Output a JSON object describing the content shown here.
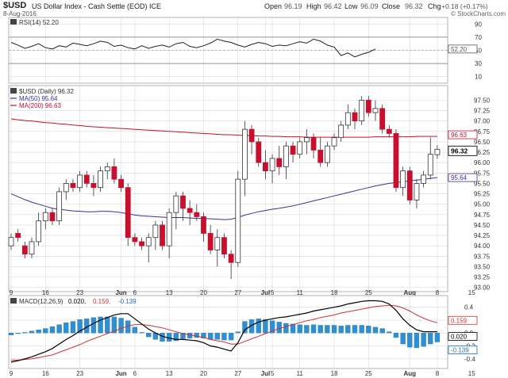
{
  "header": {
    "symbol": "$USD",
    "name": "US Dollar Index - Cash Settle (EOD) ICE",
    "date": "8-Aug-2016",
    "quote_parts": [
      "Open",
      "96.19",
      "High",
      "96.42",
      "Low",
      "96.09",
      "Close",
      "96.32",
      "Chg",
      "+0.18 (+0.17%)"
    ],
    "copyright": "© StockCharts.com"
  },
  "colors": {
    "up": "#ffffff",
    "down": "#c8102e",
    "ma50": "#33339a",
    "ma200": "#c8102e",
    "macd_line": "#000000",
    "macd_signal": "#d03030",
    "hist": "#2f8fd0",
    "grid": "#d8d8d8",
    "panel_border": "#b0b0b0"
  },
  "chart_data": [
    {
      "type": "line",
      "title": "RSI(14) 52.20",
      "yticks": [
        10,
        30,
        50,
        70,
        90
      ],
      "levels": [
        30,
        70
      ],
      "last_label": "52.20",
      "values": [
        62,
        58,
        53,
        56,
        60,
        54,
        52,
        57,
        55,
        61,
        59,
        57,
        60,
        64,
        62,
        56,
        58,
        54,
        52,
        57,
        53,
        56,
        58,
        55,
        60,
        62,
        56,
        54,
        57,
        61,
        67,
        64,
        62,
        58,
        55,
        59,
        62,
        60,
        56,
        58,
        57,
        60,
        63,
        61,
        67,
        64,
        58,
        55,
        42,
        46,
        40,
        44,
        47,
        52
      ]
    },
    {
      "type": "candlestick",
      "title": "$USD (Daily) 96.32",
      "series_labels": [
        "MA(50) 95.64",
        "MA(200) 96.63"
      ],
      "last_labels": [
        "96.63",
        "96.32",
        "95.64"
      ],
      "ylim": [
        92.9,
        97.85
      ],
      "yticks": [
        93.0,
        93.25,
        93.5,
        93.75,
        94.0,
        94.25,
        94.5,
        94.75,
        95.0,
        95.25,
        95.5,
        95.75,
        96.0,
        96.25,
        96.5,
        96.75,
        97.0,
        97.25,
        97.5
      ],
      "xticks": [
        {
          "label": "9",
          "i": 0
        },
        {
          "label": "16",
          "i": 5
        },
        {
          "label": "23",
          "i": 10
        },
        {
          "label": "Jun",
          "i": 16
        },
        {
          "label": "6",
          "i": 18
        },
        {
          "label": "13",
          "i": 23
        },
        {
          "label": "20",
          "i": 28
        },
        {
          "label": "27",
          "i": 33
        },
        {
          "label": "Jul",
          "i": 37
        },
        {
          "label": "5",
          "i": 38
        },
        {
          "label": "11",
          "i": 42
        },
        {
          "label": "18",
          "i": 47
        },
        {
          "label": "25",
          "i": 52
        },
        {
          "label": "Aug",
          "i": 58
        },
        {
          "label": "8",
          "i": 62
        },
        {
          "label": "15",
          "i": 67
        }
      ],
      "ohlc": [
        [
          94.0,
          94.3,
          93.9,
          94.2
        ],
        [
          94.3,
          94.4,
          94.1,
          94.2
        ],
        [
          94.0,
          94.1,
          93.7,
          93.8
        ],
        [
          93.8,
          94.2,
          93.7,
          94.1
        ],
        [
          94.1,
          94.8,
          94.0,
          94.6
        ],
        [
          94.6,
          94.9,
          94.4,
          94.8
        ],
        [
          94.8,
          94.9,
          94.5,
          94.6
        ],
        [
          94.6,
          95.4,
          94.5,
          95.3
        ],
        [
          95.3,
          95.6,
          95.1,
          95.5
        ],
        [
          95.5,
          95.6,
          95.3,
          95.4
        ],
        [
          95.4,
          95.8,
          95.3,
          95.7
        ],
        [
          95.7,
          95.8,
          95.4,
          95.5
        ],
        [
          95.5,
          95.7,
          95.2,
          95.4
        ],
        [
          95.4,
          95.9,
          95.3,
          95.8
        ],
        [
          95.8,
          96.0,
          95.6,
          95.9
        ],
        [
          95.9,
          96.1,
          95.5,
          95.6
        ],
        [
          95.6,
          95.7,
          95.3,
          95.4
        ],
        [
          95.4,
          95.5,
          94.0,
          94.2
        ],
        [
          94.2,
          94.3,
          94.0,
          94.1
        ],
        [
          94.1,
          94.2,
          93.9,
          94.0
        ],
        [
          94.0,
          94.3,
          93.6,
          94.2
        ],
        [
          94.2,
          94.6,
          93.9,
          94.5
        ],
        [
          94.5,
          94.6,
          93.9,
          94.0
        ],
        [
          94.0,
          94.9,
          93.7,
          94.8
        ],
        [
          94.8,
          95.3,
          94.4,
          95.2
        ],
        [
          95.2,
          95.3,
          94.6,
          94.9
        ],
        [
          94.9,
          95.1,
          94.5,
          94.8
        ],
        [
          94.8,
          95.0,
          94.6,
          94.7
        ],
        [
          94.7,
          94.8,
          94.1,
          94.3
        ],
        [
          94.3,
          94.5,
          93.8,
          93.9
        ],
        [
          93.9,
          94.4,
          93.5,
          94.2
        ],
        [
          94.2,
          94.3,
          93.7,
          93.8
        ],
        [
          93.8,
          93.9,
          93.2,
          93.6
        ],
        [
          93.6,
          95.8,
          93.5,
          95.6
        ],
        [
          95.6,
          97.0,
          95.2,
          96.8
        ],
        [
          96.8,
          96.9,
          96.2,
          96.5
        ],
        [
          96.5,
          96.6,
          95.9,
          96.0
        ],
        [
          96.0,
          96.3,
          95.6,
          95.8
        ],
        [
          95.8,
          96.2,
          95.5,
          96.1
        ],
        [
          96.1,
          96.4,
          95.7,
          95.9
        ],
        [
          95.9,
          96.5,
          95.6,
          96.4
        ],
        [
          96.4,
          96.5,
          96.0,
          96.2
        ],
        [
          96.2,
          96.6,
          96.1,
          96.5
        ],
        [
          96.5,
          96.8,
          96.2,
          96.6
        ],
        [
          96.6,
          96.7,
          96.1,
          96.3
        ],
        [
          96.3,
          96.6,
          95.9,
          96.0
        ],
        [
          96.0,
          96.5,
          95.9,
          96.4
        ],
        [
          96.4,
          96.7,
          96.3,
          96.6
        ],
        [
          96.6,
          97.0,
          96.5,
          96.9
        ],
        [
          96.9,
          97.4,
          96.8,
          97.2
        ],
        [
          97.2,
          97.3,
          96.8,
          97.0
        ],
        [
          97.0,
          97.6,
          96.9,
          97.5
        ],
        [
          97.5,
          97.6,
          97.1,
          97.2
        ],
        [
          97.2,
          97.5,
          97.0,
          97.3
        ],
        [
          97.3,
          97.4,
          96.7,
          96.8
        ],
        [
          96.8,
          96.9,
          96.6,
          96.7
        ],
        [
          96.7,
          96.8,
          95.3,
          95.4
        ],
        [
          95.4,
          95.9,
          95.2,
          95.8
        ],
        [
          95.8,
          95.9,
          95.0,
          95.1
        ],
        [
          95.1,
          95.6,
          94.9,
          95.5
        ],
        [
          95.5,
          95.8,
          95.4,
          95.7
        ],
        [
          95.7,
          96.6,
          95.6,
          96.2
        ],
        [
          96.19,
          96.42,
          96.09,
          96.32
        ]
      ],
      "ma50": [
        95.25,
        95.18,
        95.11,
        95.05,
        95.0,
        94.95,
        94.9,
        94.88,
        94.86,
        94.84,
        94.83,
        94.82,
        94.82,
        94.83,
        94.83,
        94.82,
        94.8,
        94.77,
        94.74,
        94.72,
        94.71,
        94.7,
        94.69,
        94.68,
        94.68,
        94.68,
        94.67,
        94.66,
        94.66,
        94.65,
        94.64,
        94.63,
        94.64,
        94.68,
        94.74,
        94.78,
        94.82,
        94.85,
        94.88,
        94.9,
        94.93,
        94.96,
        95.0,
        95.04,
        95.08,
        95.12,
        95.16,
        95.2,
        95.24,
        95.28,
        95.32,
        95.36,
        95.4,
        95.44,
        95.47,
        95.5,
        95.52,
        95.54,
        95.56,
        95.58,
        95.6,
        95.62,
        95.64
      ],
      "ma200": [
        97.05,
        97.03,
        97.01,
        97.0,
        96.98,
        96.96,
        96.95,
        96.93,
        96.92,
        96.9,
        96.89,
        96.87,
        96.86,
        96.85,
        96.84,
        96.83,
        96.82,
        96.81,
        96.8,
        96.79,
        96.78,
        96.77,
        96.76,
        96.75,
        96.74,
        96.73,
        96.72,
        96.71,
        96.7,
        96.69,
        96.68,
        96.67,
        96.67,
        96.66,
        96.65,
        96.65,
        96.64,
        96.64,
        96.63,
        96.63,
        96.62,
        96.62,
        96.62,
        96.61,
        96.61,
        96.61,
        96.61,
        96.61,
        96.61,
        96.61,
        96.61,
        96.61,
        96.61,
        96.62,
        96.62,
        96.62,
        96.62,
        96.62,
        96.62,
        96.63,
        96.63,
        96.63,
        96.63
      ]
    },
    {
      "type": "line",
      "title": "MACD(12,26,9) 0.020, 0.159, -0.139",
      "title_parts": [
        "MACD(12,26,9)",
        "0.020,",
        "0.159,",
        "-0.139"
      ],
      "ylim": [
        -0.55,
        0.58
      ],
      "yticks": [
        -0.4,
        -0.2,
        0.0,
        0.2,
        0.4
      ],
      "last_labels": [
        "0.159",
        "0.020",
        "-0.139"
      ],
      "xticks": [
        {
          "label": "9",
          "i": 0
        },
        {
          "label": "16",
          "i": 5
        },
        {
          "label": "23",
          "i": 10
        },
        {
          "label": "Jun",
          "i": 16
        },
        {
          "label": "6",
          "i": 18
        },
        {
          "label": "13",
          "i": 23
        },
        {
          "label": "20",
          "i": 28
        },
        {
          "label": "27",
          "i": 33
        },
        {
          "label": "Jul",
          "i": 37
        },
        {
          "label": "5",
          "i": 38
        },
        {
          "label": "11",
          "i": 42
        },
        {
          "label": "18",
          "i": 47
        },
        {
          "label": "25",
          "i": 52
        },
        {
          "label": "Aug",
          "i": 58
        },
        {
          "label": "8",
          "i": 62
        },
        {
          "label": "15",
          "i": 67
        }
      ],
      "series": [
        {
          "name": "MACD",
          "values": [
            -0.45,
            -0.43,
            -0.4,
            -0.37,
            -0.33,
            -0.29,
            -0.24,
            -0.17,
            -0.1,
            -0.04,
            0.03,
            0.09,
            0.15,
            0.2,
            0.24,
            0.28,
            0.3,
            0.3,
            0.22,
            0.14,
            0.06,
            0.0,
            -0.05,
            -0.08,
            -0.1,
            -0.1,
            -0.11,
            -0.12,
            -0.15,
            -0.2,
            -0.22,
            -0.25,
            -0.28,
            -0.15,
            0.05,
            0.12,
            0.17,
            0.2,
            0.22,
            0.24,
            0.25,
            0.27,
            0.29,
            0.31,
            0.34,
            0.36,
            0.38,
            0.4,
            0.42,
            0.45,
            0.47,
            0.49,
            0.5,
            0.5,
            0.49,
            0.45,
            0.35,
            0.22,
            0.12,
            0.05,
            0.02,
            0.02,
            0.02
          ]
        },
        {
          "name": "Signal",
          "values": [
            -0.42,
            -0.42,
            -0.41,
            -0.4,
            -0.38,
            -0.36,
            -0.34,
            -0.3,
            -0.26,
            -0.22,
            -0.18,
            -0.13,
            -0.09,
            -0.05,
            -0.01,
            0.03,
            0.07,
            0.11,
            0.13,
            0.13,
            0.12,
            0.1,
            0.08,
            0.05,
            0.02,
            -0.01,
            -0.03,
            -0.05,
            -0.07,
            -0.1,
            -0.12,
            -0.14,
            -0.17,
            -0.17,
            -0.13,
            -0.09,
            -0.05,
            -0.01,
            0.03,
            0.07,
            0.1,
            0.13,
            0.16,
            0.19,
            0.21,
            0.24,
            0.26,
            0.28,
            0.31,
            0.33,
            0.35,
            0.37,
            0.39,
            0.41,
            0.42,
            0.43,
            0.42,
            0.39,
            0.34,
            0.28,
            0.23,
            0.19,
            0.159
          ]
        },
        {
          "name": "Histogram",
          "values": [
            -0.03,
            -0.01,
            0.01,
            0.03,
            0.05,
            0.07,
            0.1,
            0.13,
            0.16,
            0.18,
            0.21,
            0.22,
            0.24,
            0.25,
            0.25,
            0.25,
            0.23,
            0.19,
            0.09,
            0.01,
            -0.06,
            -0.1,
            -0.13,
            -0.13,
            -0.12,
            -0.09,
            -0.08,
            -0.07,
            -0.08,
            -0.1,
            -0.1,
            -0.11,
            -0.11,
            0.02,
            0.18,
            0.21,
            0.22,
            0.21,
            0.19,
            0.17,
            0.15,
            0.14,
            0.13,
            0.12,
            0.13,
            0.12,
            0.12,
            0.12,
            0.11,
            0.12,
            0.12,
            0.12,
            0.11,
            0.09,
            0.07,
            0.02,
            -0.07,
            -0.17,
            -0.22,
            -0.23,
            -0.21,
            -0.17,
            -0.139
          ]
        }
      ]
    }
  ]
}
